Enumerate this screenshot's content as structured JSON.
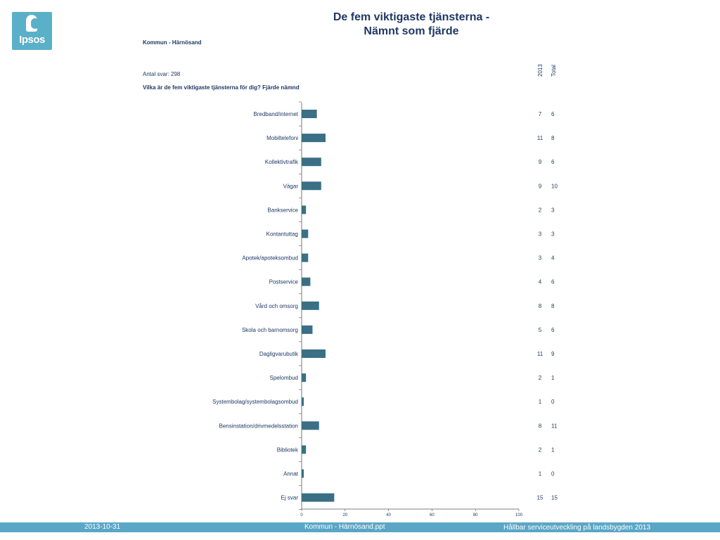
{
  "header": {
    "logo_text": "Ipsos",
    "title_line1": "De fem viktigaste tjänsterna -",
    "title_line2": "Nämnt som fjärde",
    "municipality": "Kommun - Härnösand",
    "antal": "Antal svar: 298",
    "question": "Vilka är de fem viktigaste tjänsterna för dig? Fjärde nämnd",
    "col1": "2013",
    "col2": "Total"
  },
  "chart_data": {
    "type": "bar",
    "orientation": "horizontal",
    "categories": [
      "Bredband/internet",
      "Mobiltelefoni",
      "Kollektivtrafik",
      "Vägar",
      "Bankservice",
      "Kontantuttag",
      "Apotek/apoteksombud",
      "Postservice",
      "Vård och omsorg",
      "Skola och barnomsorg",
      "Dagligvarubutik",
      "Spelombud",
      "Systembolag/systembolagsombud",
      "Bensinstation/drivmedelsstation",
      "Bibliotek",
      "Annat",
      "Ej svar"
    ],
    "series": [
      {
        "name": "2013",
        "values": [
          7,
          11,
          9,
          9,
          2,
          3,
          3,
          4,
          8,
          5,
          11,
          2,
          1,
          8,
          2,
          1,
          15
        ]
      }
    ],
    "totals": [
      6,
      8,
      6,
      10,
      3,
      3,
      4,
      6,
      8,
      6,
      9,
      1,
      0,
      11,
      1,
      0,
      15
    ],
    "xlim": [
      0,
      100
    ],
    "xticks": [
      "0",
      "20",
      "40",
      "60",
      "80",
      "100"
    ],
    "bar_color": "#3a6f86"
  },
  "footer": {
    "date": "2013-10-31",
    "file": "Kommun - Härnösand.ppt",
    "project": "Hållbar serviceutveckling på landsbygden 2013"
  }
}
